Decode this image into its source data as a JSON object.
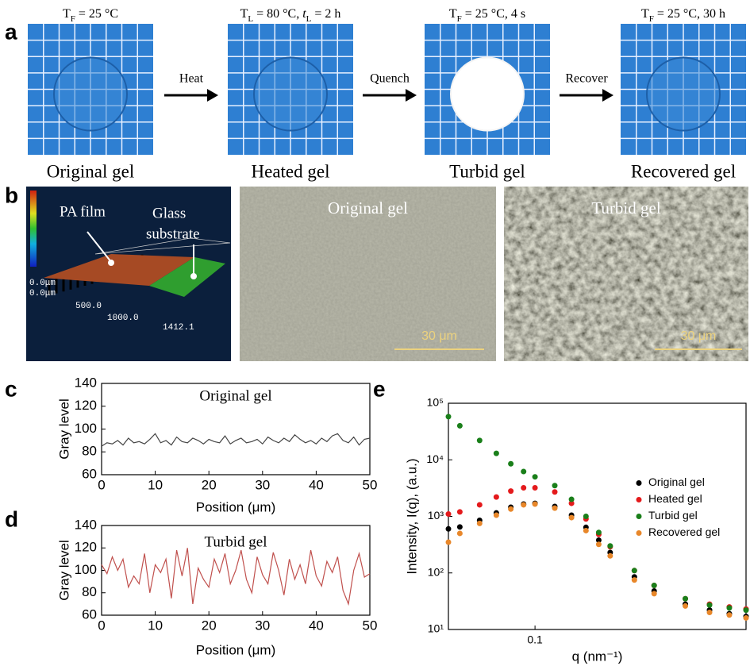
{
  "panel_letters": [
    "a",
    "b",
    "c",
    "d",
    "e"
  ],
  "panel_a": {
    "photos": [
      {
        "condition": [
          {
            "text": "T"
          },
          {
            "sub": "F"
          },
          {
            "text": " = 25 °C"
          }
        ],
        "caption": "Original gel"
      },
      {
        "condition": [
          {
            "text": "T"
          },
          {
            "sub": "L"
          },
          {
            "text": " = 80 °C, "
          },
          {
            "italic": "t"
          },
          {
            "sub": "L"
          },
          {
            "text": " = 2 h"
          }
        ],
        "caption": "Heated gel"
      },
      {
        "condition": [
          {
            "text": "T"
          },
          {
            "sub": "F"
          },
          {
            "text": " = 25 °C, 4 s"
          }
        ],
        "caption": "Turbid gel"
      },
      {
        "condition": [
          {
            "text": "T"
          },
          {
            "sub": "F"
          },
          {
            "text": " = 25 °C, 30 h"
          }
        ],
        "caption": "Recovered gel"
      }
    ],
    "arrows": [
      "Heat",
      "Quench",
      "Recover"
    ]
  },
  "panel_b": {
    "profilometry": {
      "film_label": "PA film",
      "substrate_label": [
        "Glass",
        "substrate"
      ],
      "axis_labels": [
        "0.0μm",
        "0.0μm",
        "500.0",
        "1000.0",
        "1412.1"
      ]
    },
    "micrographs": [
      {
        "label": "Original gel",
        "scale_bar": "30 μm"
      },
      {
        "label": "Turbid gel",
        "scale_bar": "30 μm"
      }
    ]
  },
  "chart_data": [
    {
      "type": "line",
      "annotation": "Original gel",
      "xlabel": "Position (μm)",
      "ylabel": "Gray level",
      "x": [
        0,
        1,
        2,
        3,
        4,
        5,
        6,
        7,
        8,
        9,
        10,
        11,
        12,
        13,
        14,
        15,
        16,
        17,
        18,
        19,
        20,
        21,
        22,
        23,
        24,
        25,
        26,
        27,
        28,
        29,
        30,
        31,
        32,
        33,
        34,
        35,
        36,
        37,
        38,
        39,
        40,
        41,
        42,
        43,
        44,
        45,
        46,
        47,
        48,
        49,
        50
      ],
      "series": [
        {
          "color": "#444444",
          "values": [
            85,
            88,
            87,
            90,
            86,
            92,
            88,
            89,
            87,
            91,
            96,
            88,
            90,
            86,
            93,
            89,
            88,
            92,
            90,
            87,
            91,
            89,
            88,
            94,
            87,
            90,
            92,
            88,
            89,
            91,
            87,
            93,
            90,
            88,
            92,
            89,
            95,
            91,
            88,
            90,
            87,
            92,
            89,
            94,
            96,
            90,
            88,
            93,
            86,
            91,
            92
          ]
        }
      ],
      "xlim": [
        0,
        50
      ],
      "ylim": [
        60,
        140
      ],
      "xticks": [
        0,
        10,
        20,
        30,
        40,
        50
      ],
      "yticks": [
        60,
        80,
        100,
        120,
        140
      ]
    },
    {
      "type": "line",
      "annotation": "Turbid gel",
      "xlabel": "Position (μm)",
      "ylabel": "Gray level",
      "x": [
        0,
        1,
        2,
        3,
        4,
        5,
        6,
        7,
        8,
        9,
        10,
        11,
        12,
        13,
        14,
        15,
        16,
        17,
        18,
        19,
        20,
        21,
        22,
        23,
        24,
        25,
        26,
        27,
        28,
        29,
        30,
        31,
        32,
        33,
        34,
        35,
        36,
        37,
        38,
        39,
        40,
        41,
        42,
        43,
        44,
        45,
        46,
        47,
        48,
        49,
        50
      ],
      "series": [
        {
          "color": "#c0504d",
          "values": [
            105,
            97,
            112,
            100,
            110,
            85,
            95,
            88,
            115,
            80,
            105,
            98,
            110,
            75,
            118,
            95,
            120,
            70,
            102,
            92,
            85,
            110,
            98,
            115,
            88,
            100,
            118,
            92,
            80,
            112,
            96,
            88,
            116,
            100,
            78,
            110,
            92,
            105,
            88,
            118,
            95,
            86,
            108,
            98,
            112,
            82,
            70,
            100,
            115,
            94,
            97
          ]
        }
      ],
      "xlim": [
        0,
        50
      ],
      "ylim": [
        60,
        140
      ],
      "xticks": [
        0,
        10,
        20,
        30,
        40,
        50
      ],
      "yticks": [
        60,
        80,
        100,
        120,
        140
      ]
    },
    {
      "type": "scatter",
      "xlabel": "q (nm⁻¹)",
      "ylabel": "Intensity, I(q), (a.u.)",
      "xlog": true,
      "ylog": true,
      "legend": "right",
      "x": [
        0.045,
        0.05,
        0.06,
        0.07,
        0.08,
        0.09,
        0.1,
        0.12,
        0.14,
        0.16,
        0.18,
        0.2,
        0.25,
        0.3,
        0.4,
        0.5,
        0.6,
        0.7
      ],
      "series": [
        {
          "name": "Original gel",
          "color": "#000000",
          "values": [
            600,
            650,
            850,
            1150,
            1450,
            1650,
            1700,
            1500,
            1050,
            640,
            380,
            230,
            85,
            48,
            28,
            22,
            19,
            17
          ]
        },
        {
          "name": "Heated gel",
          "color": "#e41a1c",
          "values": [
            1100,
            1200,
            1600,
            2200,
            2800,
            3200,
            3200,
            2700,
            1700,
            900,
            480,
            290,
            110,
            60,
            35,
            28,
            25,
            23
          ]
        },
        {
          "name": "Turbid gel",
          "color": "#1a7f1a",
          "values": [
            58000,
            40000,
            22000,
            13000,
            8500,
            6200,
            5000,
            3500,
            2000,
            1000,
            520,
            300,
            110,
            60,
            35,
            27,
            24,
            22
          ]
        },
        {
          "name": "Recovered gel",
          "color": "#e8872a",
          "values": [
            350,
            500,
            750,
            1050,
            1350,
            1600,
            1650,
            1400,
            950,
            560,
            320,
            200,
            75,
            43,
            26,
            20,
            18,
            16
          ]
        }
      ],
      "xlim": [
        0.045,
        0.7
      ],
      "ylim": [
        10,
        100000
      ],
      "xticks": [
        0.1
      ],
      "yticks": [
        {
          "value": 10,
          "label": "10¹"
        },
        {
          "value": 100,
          "label": "10²"
        },
        {
          "value": 1000,
          "label": "10³"
        },
        {
          "value": 10000,
          "label": "10⁴"
        },
        {
          "value": 100000,
          "label": "10⁵"
        }
      ]
    }
  ]
}
